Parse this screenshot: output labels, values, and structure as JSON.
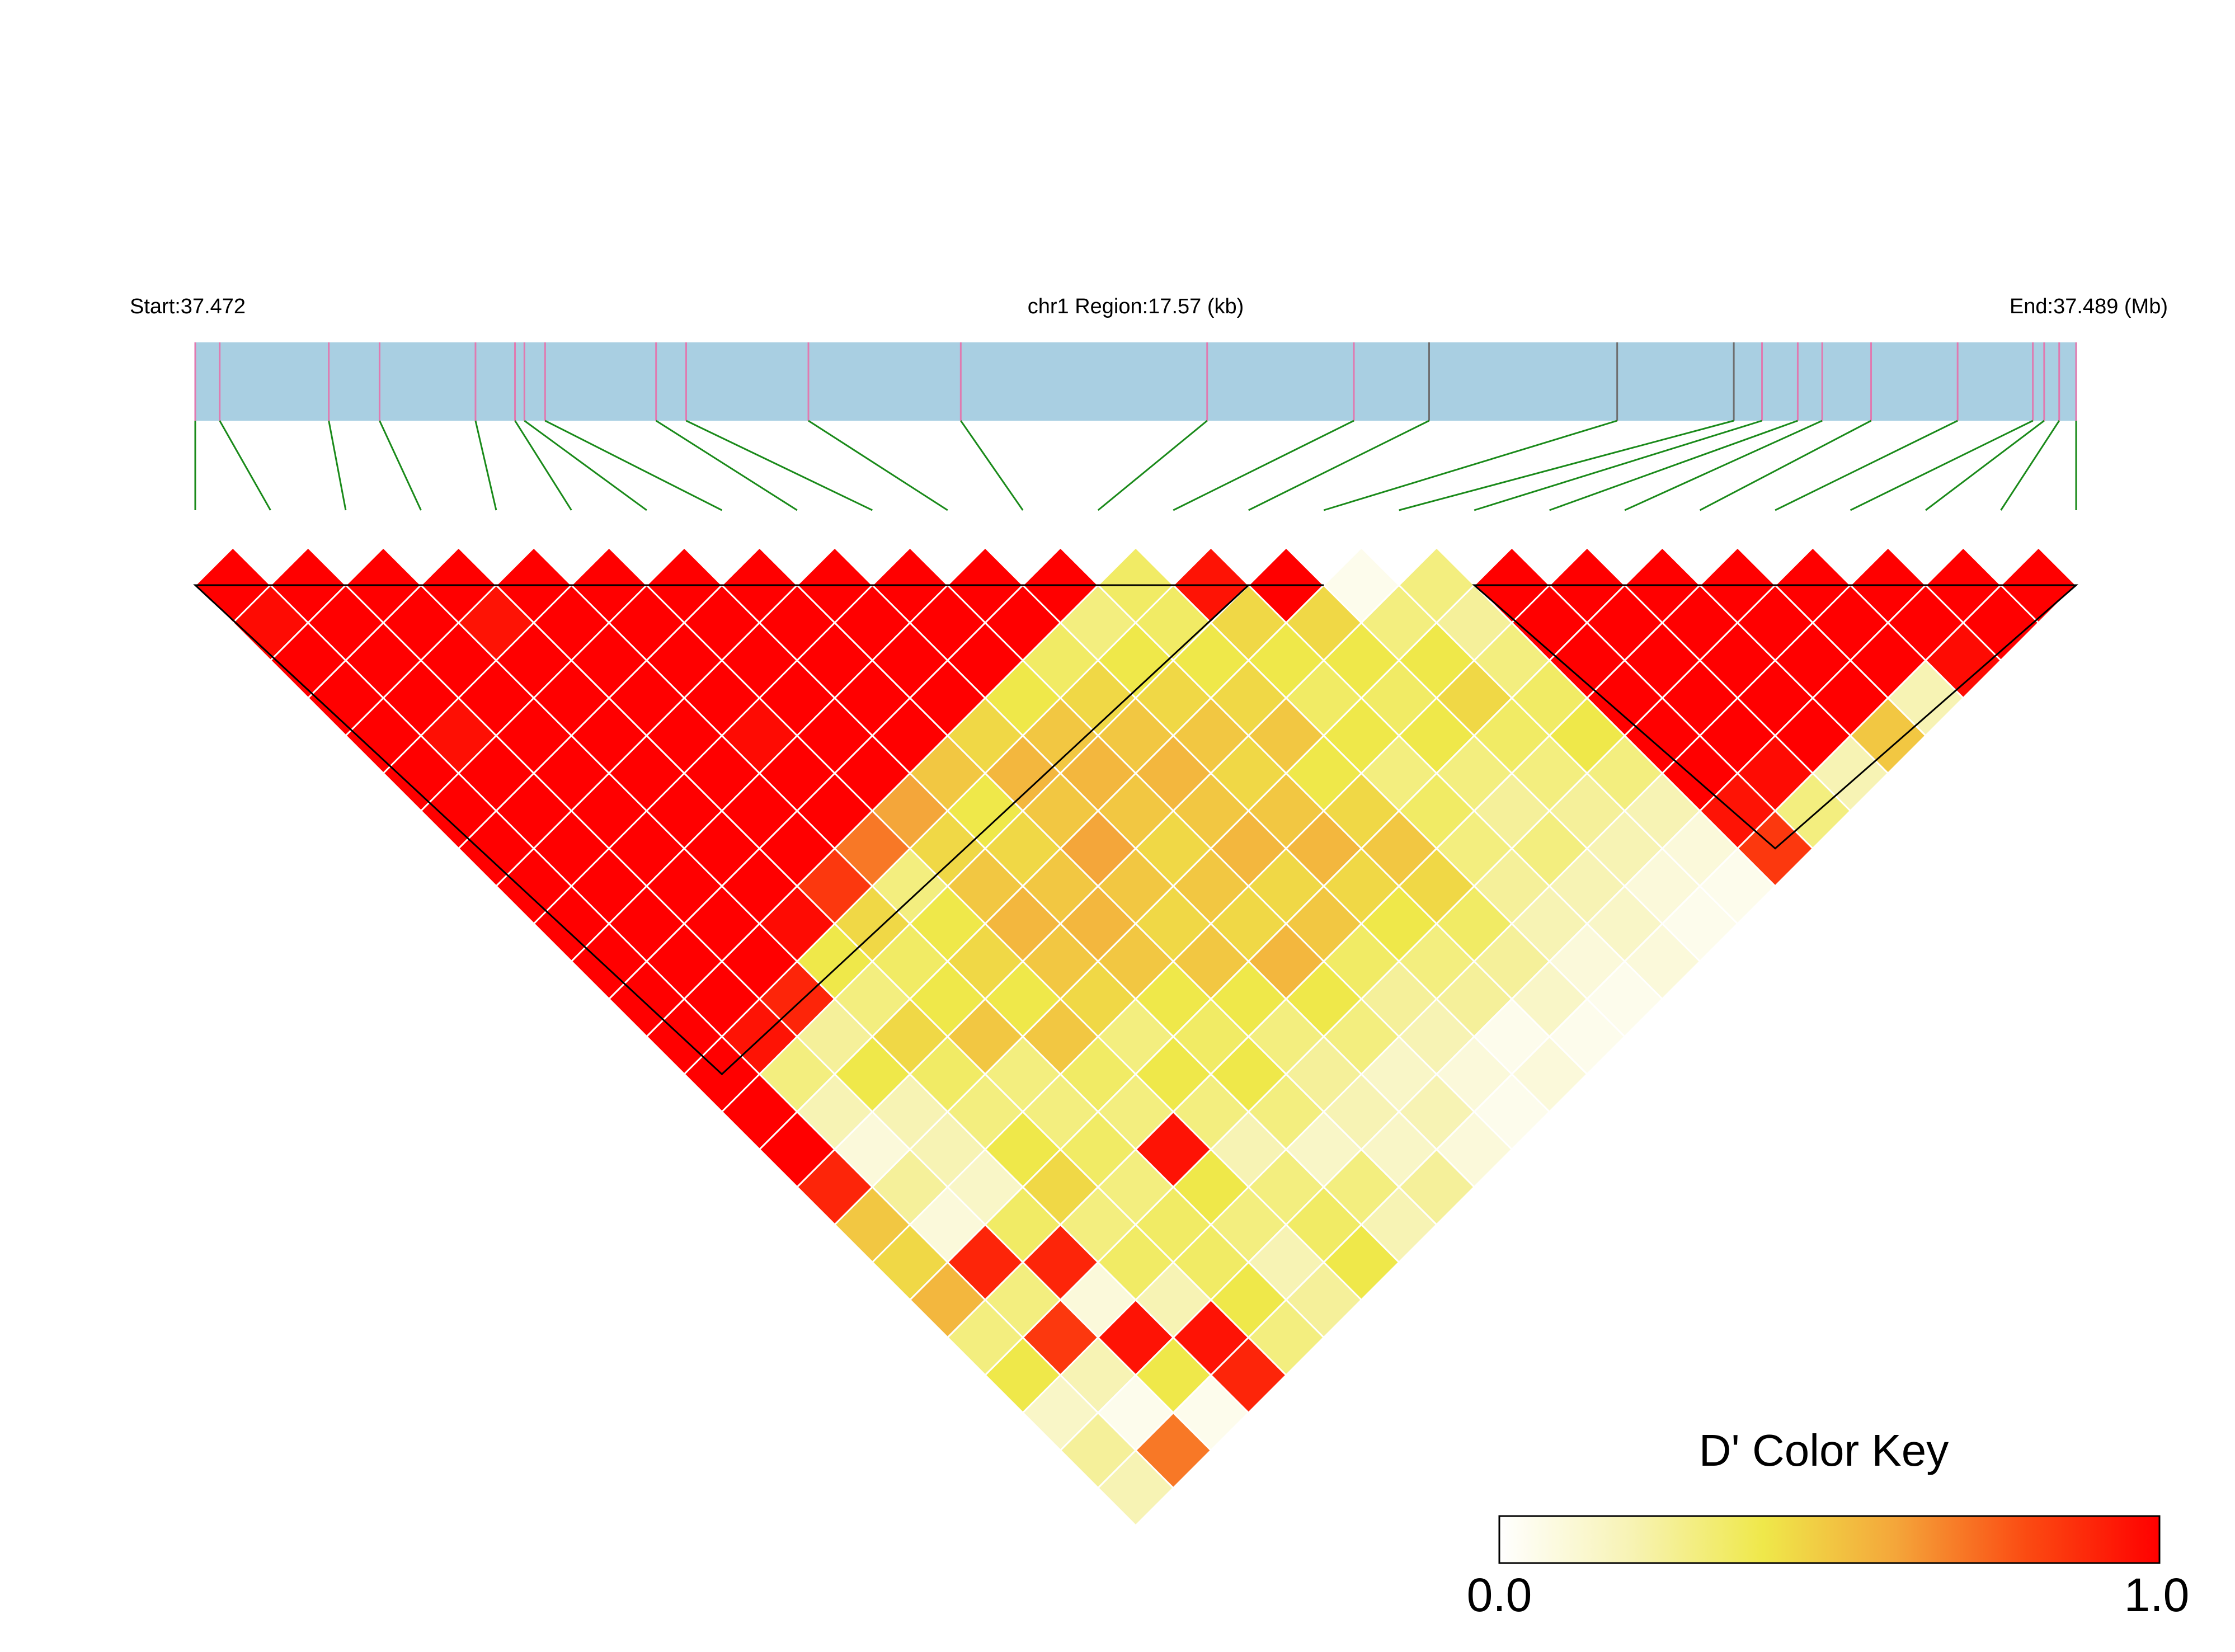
{
  "header": {
    "start_label": "Start:37.472",
    "region_label": "chr1 Region:17.57 (kb)",
    "end_label": "End:37.489 (Mb)"
  },
  "legend": {
    "title": "D' Color Key",
    "min_label": "0.0",
    "max_label": "1.0",
    "gradient_stops": [
      "#ffffff",
      "#f7f3b4",
      "#efe84a",
      "#f4a63a",
      "#fb4a12",
      "#ff0000"
    ]
  },
  "colors": {
    "track": "#a9cfe2",
    "snp_tick_pink": "#e07ab0",
    "snp_tick_gray": "#6e6e6e",
    "connector": "#1a8a1a",
    "cell_border": "#ffffff",
    "block_outline": "#000000"
  },
  "chart_data": {
    "type": "heatmap",
    "description_of_values": "Pairwise LD D' between 26 SNPs, upper-triangle (row i, column j>i)",
    "snp_count": 26,
    "snp_positions_fraction": [
      0.0,
      0.013,
      0.071,
      0.098,
      0.149,
      0.17,
      0.175,
      0.186,
      0.245,
      0.261,
      0.326,
      0.407,
      0.538,
      0.616,
      0.656,
      0.756,
      0.818,
      0.833,
      0.852,
      0.865,
      0.891,
      0.937,
      0.977,
      0.983,
      0.991,
      1.0
    ],
    "gray_ticks": [
      14,
      15,
      16
    ],
    "ld_blocks": [
      [
        0,
        14
      ],
      [
        14,
        15
      ],
      [
        17,
        25
      ]
    ],
    "dprime_matrix": [
      [
        null,
        1.0,
        0.97,
        1.0,
        1.0,
        1.0,
        1.0,
        1.0,
        1.0,
        1.0,
        1.0,
        1.0,
        1.0,
        1.0,
        1.0,
        1.0,
        1.0,
        0.9,
        0.5,
        0.45,
        0.55,
        0.3,
        0.4,
        0.15,
        0.25,
        0.2
      ],
      [
        null,
        null,
        1.0,
        1.0,
        1.0,
        1.0,
        0.96,
        1.0,
        1.0,
        1.0,
        1.0,
        1.0,
        1.0,
        1.0,
        0.95,
        0.3,
        0.2,
        0.1,
        0.25,
        0.1,
        0.9,
        0.3,
        0.85,
        0.2,
        0.05,
        0.7
      ],
      [
        null,
        null,
        null,
        1.0,
        1.0,
        1.0,
        1.0,
        1.0,
        1.0,
        1.0,
        1.0,
        1.0,
        1.0,
        1.0,
        0.9,
        0.25,
        0.4,
        0.2,
        0.2,
        0.15,
        0.35,
        0.9,
        0.1,
        0.95,
        0.4,
        0.05
      ],
      [
        null,
        null,
        null,
        null,
        1.0,
        0.95,
        1.0,
        1.0,
        1.0,
        1.0,
        1.0,
        1.0,
        1.0,
        0.97,
        0.4,
        0.3,
        0.45,
        0.35,
        0.3,
        0.4,
        0.45,
        0.3,
        0.35,
        0.2,
        0.95,
        0.9
      ],
      [
        null,
        null,
        null,
        null,
        null,
        1.0,
        1.0,
        1.0,
        1.0,
        1.0,
        1.0,
        1.0,
        1.0,
        0.85,
        0.45,
        0.35,
        0.4,
        0.5,
        0.3,
        0.3,
        0.35,
        0.3,
        0.35,
        0.35,
        0.4,
        0.3
      ],
      [
        null,
        null,
        null,
        null,
        null,
        null,
        1.0,
        1.0,
        1.0,
        1.0,
        0.97,
        1.0,
        1.0,
        0.7,
        0.3,
        0.4,
        0.45,
        0.4,
        0.5,
        0.35,
        0.3,
        0.95,
        0.4,
        0.3,
        0.2,
        0.25
      ],
      [
        null,
        null,
        null,
        null,
        null,
        null,
        null,
        1.0,
        1.0,
        1.0,
        1.0,
        1.0,
        1.0,
        0.6,
        0.45,
        0.5,
        0.55,
        0.5,
        0.45,
        0.3,
        0.4,
        0.3,
        0.2,
        0.3,
        0.35,
        0.4
      ],
      [
        null,
        null,
        null,
        null,
        null,
        null,
        null,
        null,
        1.0,
        1.0,
        1.0,
        1.0,
        1.0,
        0.5,
        0.4,
        0.45,
        0.5,
        0.55,
        0.5,
        0.4,
        0.35,
        0.4,
        0.3,
        0.15,
        0.3,
        0.2
      ],
      [
        null,
        null,
        null,
        null,
        null,
        null,
        null,
        null,
        null,
        1.0,
        1.0,
        1.0,
        1.0,
        0.45,
        0.55,
        0.5,
        0.6,
        0.5,
        0.45,
        0.5,
        0.4,
        0.3,
        0.25,
        0.2,
        0.15,
        0.25
      ],
      [
        null,
        null,
        null,
        null,
        null,
        null,
        null,
        null,
        null,
        null,
        1.0,
        1.0,
        1.0,
        0.4,
        0.5,
        0.55,
        0.5,
        0.45,
        0.5,
        0.45,
        0.55,
        0.4,
        0.3,
        0.15,
        0.2,
        0.1
      ],
      [
        null,
        null,
        null,
        null,
        null,
        null,
        null,
        null,
        null,
        null,
        null,
        1.0,
        1.0,
        0.35,
        0.45,
        0.5,
        0.55,
        0.5,
        0.55,
        0.45,
        0.5,
        0.35,
        0.25,
        0.2,
        0.1,
        0.05
      ],
      [
        null,
        null,
        null,
        null,
        null,
        null,
        null,
        null,
        null,
        null,
        null,
        null,
        1.0,
        0.3,
        0.4,
        0.45,
        0.5,
        0.45,
        0.5,
        0.55,
        0.45,
        0.4,
        0.3,
        0.25,
        0.05,
        0.1
      ],
      [
        null,
        null,
        null,
        null,
        null,
        null,
        null,
        null,
        null,
        null,
        null,
        null,
        null,
        0.35,
        0.35,
        0.4,
        0.45,
        0.5,
        0.4,
        0.45,
        0.5,
        0.45,
        0.35,
        0.25,
        0.15,
        0.05
      ],
      [
        null,
        null,
        null,
        null,
        null,
        null,
        null,
        null,
        null,
        null,
        null,
        null,
        null,
        null,
        0.95,
        0.45,
        0.4,
        0.35,
        0.4,
        0.3,
        0.35,
        0.3,
        0.25,
        0.2,
        0.1,
        0.05
      ],
      [
        null,
        null,
        null,
        null,
        null,
        null,
        null,
        null,
        null,
        null,
        null,
        null,
        null,
        null,
        null,
        1.0,
        0.45,
        0.4,
        0.35,
        0.4,
        0.3,
        0.25,
        0.3,
        0.2,
        0.15,
        0.1
      ],
      [
        null,
        null,
        null,
        null,
        null,
        null,
        null,
        null,
        null,
        null,
        null,
        null,
        null,
        null,
        null,
        null,
        0.05,
        0.3,
        0.4,
        0.45,
        0.35,
        0.3,
        0.25,
        0.2,
        0.1,
        0.05
      ],
      [
        null,
        null,
        null,
        null,
        null,
        null,
        null,
        null,
        null,
        null,
        null,
        null,
        null,
        null,
        null,
        null,
        null,
        0.3,
        0.25,
        0.3,
        0.35,
        0.4,
        0.3,
        0.2,
        0.1,
        0.05
      ],
      [
        null,
        null,
        null,
        null,
        null,
        null,
        null,
        null,
        null,
        null,
        null,
        null,
        null,
        null,
        null,
        null,
        null,
        null,
        1.0,
        1.0,
        1.0,
        1.0,
        1.0,
        1.0,
        0.95,
        0.85
      ],
      [
        null,
        null,
        null,
        null,
        null,
        null,
        null,
        null,
        null,
        null,
        null,
        null,
        null,
        null,
        null,
        null,
        null,
        null,
        null,
        1.0,
        1.0,
        1.0,
        1.0,
        1.0,
        0.97,
        0.3
      ],
      [
        null,
        null,
        null,
        null,
        null,
        null,
        null,
        null,
        null,
        null,
        null,
        null,
        null,
        null,
        null,
        null,
        null,
        null,
        null,
        null,
        1.0,
        1.0,
        1.0,
        1.0,
        1.0,
        0.2
      ],
      [
        null,
        null,
        null,
        null,
        null,
        null,
        null,
        null,
        null,
        null,
        null,
        null,
        null,
        null,
        null,
        null,
        null,
        null,
        null,
        null,
        null,
        1.0,
        1.0,
        1.0,
        1.0,
        0.5
      ],
      [
        null,
        null,
        null,
        null,
        null,
        null,
        null,
        null,
        null,
        null,
        null,
        null,
        null,
        null,
        null,
        null,
        null,
        null,
        null,
        null,
        null,
        null,
        1.0,
        1.0,
        1.0,
        0.2
      ],
      [
        null,
        null,
        null,
        null,
        null,
        null,
        null,
        null,
        null,
        null,
        null,
        null,
        null,
        null,
        null,
        null,
        null,
        null,
        null,
        null,
        null,
        null,
        null,
        1.0,
        1.0,
        0.97
      ],
      [
        null,
        null,
        null,
        null,
        null,
        null,
        null,
        null,
        null,
        null,
        null,
        null,
        null,
        null,
        null,
        null,
        null,
        null,
        null,
        null,
        null,
        null,
        null,
        null,
        1.0,
        1.0
      ],
      [
        null,
        null,
        null,
        null,
        null,
        null,
        null,
        null,
        null,
        null,
        null,
        null,
        null,
        null,
        null,
        null,
        null,
        null,
        null,
        null,
        null,
        null,
        null,
        null,
        null,
        1.0
      ],
      [
        null,
        null,
        null,
        null,
        null,
        null,
        null,
        null,
        null,
        null,
        null,
        null,
        null,
        null,
        null,
        null,
        null,
        null,
        null,
        null,
        null,
        null,
        null,
        null,
        null,
        null
      ]
    ]
  }
}
